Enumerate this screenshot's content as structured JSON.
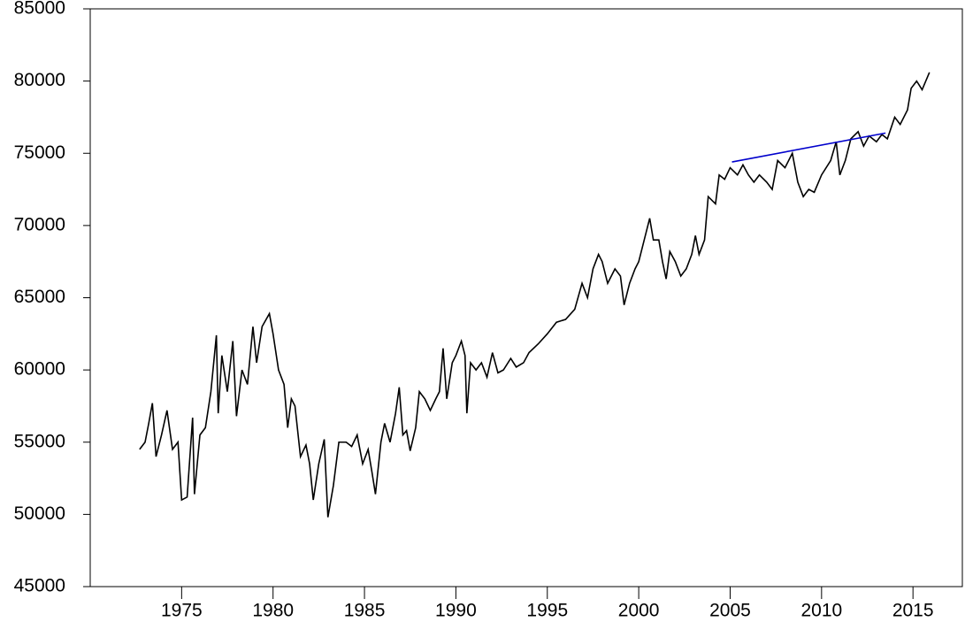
{
  "chart_data": {
    "type": "line",
    "xlim": [
      1970,
      2017.7
    ],
    "ylim": [
      45000,
      85000
    ],
    "xticks": [
      1975,
      1980,
      1985,
      1990,
      1995,
      2000,
      2005,
      2010,
      2015
    ],
    "yticks": [
      45000,
      50000,
      55000,
      60000,
      65000,
      70000,
      75000,
      80000,
      85000
    ],
    "grid": false,
    "series": [
      {
        "color": "#000000",
        "x": [
          1972.7,
          1973.0,
          1973.2,
          1973.4,
          1973.6,
          1973.9,
          1974.2,
          1974.5,
          1974.8,
          1975.0,
          1975.3,
          1975.6,
          1975.7,
          1976.0,
          1976.3,
          1976.6,
          1976.9,
          1977.0,
          1977.2,
          1977.5,
          1977.8,
          1978.0,
          1978.3,
          1978.6,
          1978.9,
          1979.1,
          1979.4,
          1979.8,
          1980.0,
          1980.3,
          1980.6,
          1980.8,
          1981.0,
          1981.2,
          1981.5,
          1981.8,
          1982.0,
          1982.2,
          1982.5,
          1982.8,
          1983.0,
          1983.3,
          1983.6,
          1984.0,
          1984.3,
          1984.6,
          1984.9,
          1985.2,
          1985.4,
          1985.6,
          1985.9,
          1986.1,
          1986.4,
          1986.7,
          1986.9,
          1987.1,
          1987.3,
          1987.5,
          1987.8,
          1988.0,
          1988.3,
          1988.6,
          1988.9,
          1989.1,
          1989.3,
          1989.5,
          1989.8,
          1990.0,
          1990.3,
          1990.5,
          1990.6,
          1990.8,
          1991.1,
          1991.4,
          1991.7,
          1992.0,
          1992.3,
          1992.6,
          1993.0,
          1993.3,
          1993.7,
          1994.0,
          1994.5,
          1995.0,
          1995.5,
          1996.0,
          1996.5,
          1996.9,
          1997.2,
          1997.5,
          1997.8,
          1998.0,
          1998.3,
          1998.7,
          1999.0,
          1999.2,
          1999.5,
          1999.8,
          2000.0,
          2000.3,
          2000.6,
          2000.8,
          2001.1,
          2001.3,
          2001.5,
          2001.7,
          2002.0,
          2002.3,
          2002.6,
          2002.9,
          2003.1,
          2003.3,
          2003.6,
          2003.8,
          2004.2,
          2004.4,
          2004.7,
          2005.0,
          2005.4,
          2005.7,
          2006.0,
          2006.3,
          2006.6,
          2007.0,
          2007.3,
          2007.6,
          2008.0,
          2008.4,
          2008.7,
          2009.0,
          2009.3,
          2009.6,
          2010.0,
          2010.5,
          2010.8,
          2011.0,
          2011.3,
          2011.6,
          2012.0,
          2012.3,
          2012.6,
          2013.0,
          2013.3,
          2013.6,
          2014.0,
          2014.3,
          2014.7,
          2014.9,
          2015.2,
          2015.5,
          2015.9
        ],
        "values": [
          54500,
          55000,
          56300,
          57700,
          54000,
          55500,
          57200,
          54500,
          55000,
          51000,
          51200,
          56700,
          51400,
          55500,
          56000,
          58500,
          62400,
          57000,
          61000,
          58500,
          62000,
          56800,
          60000,
          59000,
          63000,
          60500,
          63000,
          63900,
          62500,
          60000,
          59000,
          56000,
          58000,
          57500,
          54000,
          54800,
          53500,
          51000,
          53500,
          55200,
          49800,
          52000,
          55000,
          55000,
          54700,
          55500,
          53500,
          54500,
          53000,
          51400,
          55000,
          56300,
          55000,
          57000,
          58800,
          55500,
          55800,
          54400,
          56000,
          58500,
          58000,
          57200,
          58000,
          58500,
          61500,
          58000,
          60500,
          61000,
          62000,
          61000,
          57000,
          60500,
          60000,
          60500,
          59500,
          61200,
          59800,
          60000,
          60800,
          60200,
          60500,
          61200,
          61800,
          62500,
          63300,
          63500,
          64200,
          66000,
          65000,
          67000,
          68000,
          67500,
          66000,
          67000,
          66500,
          64500,
          66000,
          67000,
          67500,
          69000,
          70500,
          69000,
          69000,
          67500,
          66300,
          68200,
          67500,
          66500,
          67000,
          68000,
          69300,
          68000,
          69000,
          72000,
          71500,
          73500,
          73200,
          74000,
          73500,
          74200,
          73500,
          73000,
          73500,
          73000,
          72500,
          74500,
          74000,
          75000,
          73000,
          72000,
          72500,
          72300,
          73500,
          74500,
          75800,
          73500,
          74500,
          76000,
          76500,
          75500,
          76200,
          75800,
          76300,
          76000,
          77500,
          77000,
          78000,
          79500,
          80000,
          79400,
          80600
        ]
      },
      {
        "color": "#0000cc",
        "x": [
          2005.1,
          2013.5
        ],
        "values": [
          74400,
          76400
        ]
      }
    ]
  }
}
